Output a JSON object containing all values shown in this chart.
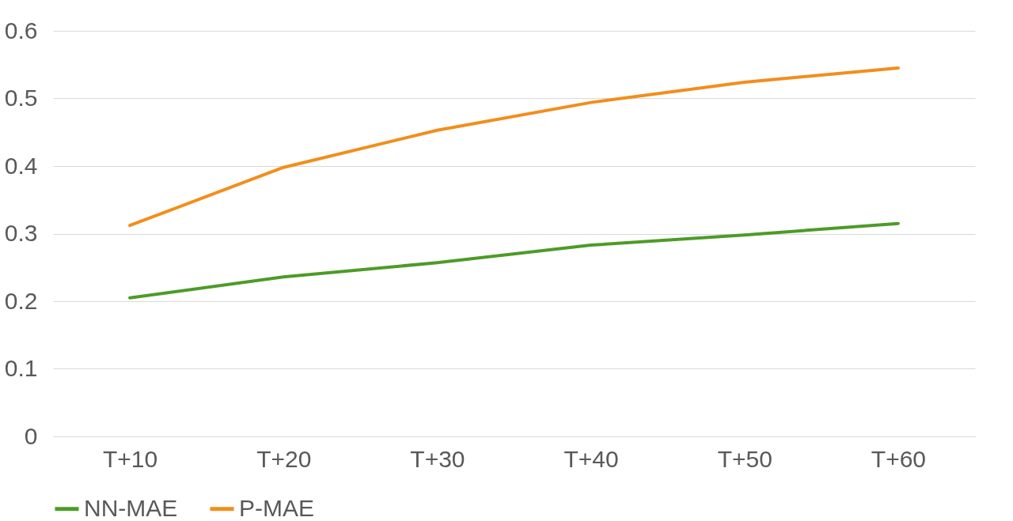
{
  "chart_data": {
    "type": "line",
    "categories": [
      "T+10",
      "T+20",
      "T+30",
      "T+40",
      "T+50",
      "T+60"
    ],
    "series": [
      {
        "name": "NN-MAE",
        "color": "#4d9b27",
        "values": [
          0.205,
          0.236,
          0.257,
          0.283,
          0.298,
          0.315
        ]
      },
      {
        "name": "P-MAE",
        "color": "#f28e1c",
        "values": [
          0.312,
          0.398,
          0.453,
          0.494,
          0.524,
          0.545
        ]
      }
    ],
    "ylim": [
      0,
      0.6
    ],
    "yticks": [
      0,
      0.1,
      0.2,
      0.3,
      0.4,
      0.5,
      0.6
    ],
    "grid": "y",
    "legend": "bottom",
    "marker": "none",
    "line_style": "solid"
  }
}
